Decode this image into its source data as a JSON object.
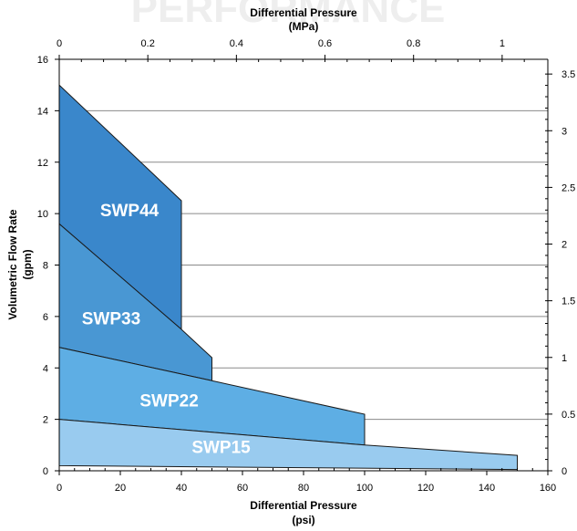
{
  "watermark": "PERFORMANCE",
  "chart_data": {
    "type": "area",
    "x_bottom": {
      "label_line1": "Differential Pressure",
      "label_line2": "(psi)",
      "range": [
        0,
        160
      ],
      "ticks": [
        "0",
        "20",
        "40",
        "60",
        "80",
        "100",
        "120",
        "140",
        "160"
      ]
    },
    "x_top": {
      "label_line1": "Differential Pressure",
      "label_line2": "(MPa)",
      "ticks": [
        {
          "value": 0,
          "label": "0"
        },
        {
          "value": 0.2,
          "label": "0.2"
        },
        {
          "value": 0.4,
          "label": "0.4"
        },
        {
          "value": 0.6,
          "label": "0.6"
        },
        {
          "value": 0.8,
          "label": "0.8"
        },
        {
          "value": 1,
          "label": "1"
        }
      ]
    },
    "y_left": {
      "label_line1": "Volumetric Flow Rate",
      "label_line2": "(gpm)",
      "range": [
        0,
        16
      ],
      "ticks": [
        "0",
        "2",
        "4",
        "6",
        "8",
        "10",
        "12",
        "14",
        "16"
      ]
    },
    "y_right": {
      "ticks": [
        {
          "value": 0,
          "label": "0"
        },
        {
          "value": 0.5,
          "label": "0.5"
        },
        {
          "value": 1,
          "label": "1"
        },
        {
          "value": 1.5,
          "label": "1.5"
        },
        {
          "value": 2,
          "label": "2"
        },
        {
          "value": 2.5,
          "label": "2.5"
        },
        {
          "value": 3,
          "label": "3"
        },
        {
          "value": 3.5,
          "label": "3.5"
        }
      ]
    },
    "grid": "horizontal",
    "series": [
      {
        "name": "SWP44",
        "color": "#3a87cb",
        "polygon": [
          [
            0,
            15
          ],
          [
            40,
            10.5
          ],
          [
            40,
            5.5
          ],
          [
            0,
            9.6
          ]
        ],
        "label_at": [
          23,
          9.9
        ]
      },
      {
        "name": "SWP33",
        "color": "#4997d3",
        "polygon": [
          [
            0,
            9.6
          ],
          [
            40,
            5.5
          ],
          [
            50,
            4.4
          ],
          [
            50,
            3.5
          ],
          [
            0,
            4.8
          ]
        ],
        "label_at": [
          17,
          5.7
        ]
      },
      {
        "name": "SWP22",
        "color": "#5eaee4",
        "polygon": [
          [
            0,
            4.8
          ],
          [
            50,
            3.5
          ],
          [
            100,
            2.2
          ],
          [
            100,
            1.0
          ],
          [
            0,
            2.0
          ]
        ],
        "label_at": [
          36,
          2.5
        ]
      },
      {
        "name": "SWP15",
        "color": "#99cbef",
        "polygon": [
          [
            0,
            2.0
          ],
          [
            100,
            1.0
          ],
          [
            150,
            0.6
          ],
          [
            150,
            0.05
          ],
          [
            0,
            0.2
          ]
        ],
        "label_at": [
          53,
          0.7
        ]
      }
    ]
  }
}
